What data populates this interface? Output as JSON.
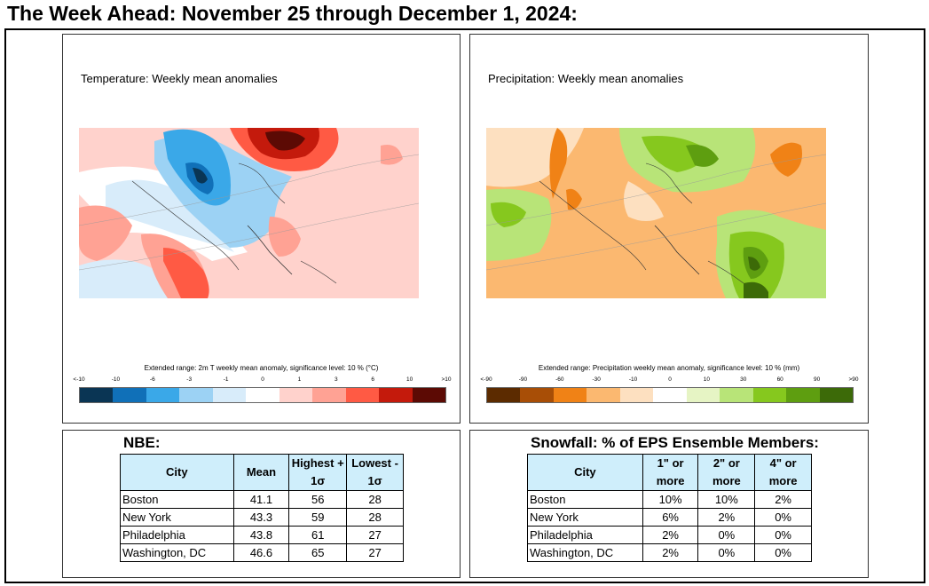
{
  "page_title": "The Week Ahead: November 25 through December 1, 2024:",
  "temperature_map": {
    "subtitle": "Temperature: Weekly mean anomalies",
    "legend_caption": "Extended range: 2m T weekly mean anomaly, significance level: 10 % (°C)",
    "tick_labels": [
      "<-10",
      "-10",
      "-6",
      "-3",
      "-1",
      "0",
      "1",
      "3",
      "6",
      "10",
      ">10"
    ],
    "colors": [
      "#0a3554",
      "#1070b8",
      "#3aa8e8",
      "#9cd2f4",
      "#d8ecfa",
      "#ffffff",
      "#ffd2cc",
      "#ffa294",
      "#ff5a44",
      "#c41a0c",
      "#5c0a04"
    ]
  },
  "precipitation_map": {
    "subtitle": "Precipitation: Weekly mean anomalies",
    "legend_caption": "Extended range: Precipitation weekly mean anomaly, significance level: 10 % (mm)",
    "tick_labels": [
      "<-90",
      "-90",
      "-60",
      "-30",
      "-10",
      "0",
      "10",
      "30",
      "60",
      "90",
      ">90"
    ],
    "colors": [
      "#5c2b00",
      "#a84e06",
      "#f08216",
      "#fbb870",
      "#fde0c0",
      "#ffffff",
      "#e6f4c4",
      "#b8e478",
      "#86c81e",
      "#5e9e10",
      "#3c6a08"
    ]
  },
  "nbe_table": {
    "title": "NBE:",
    "headers": [
      "City",
      "Mean",
      "Highest + 1σ",
      "Lowest - 1σ"
    ],
    "rows": [
      [
        "Boston",
        "41.1",
        "56",
        "28"
      ],
      [
        "New York",
        "43.3",
        "59",
        "28"
      ],
      [
        "Philadelphia",
        "43.8",
        "61",
        "27"
      ],
      [
        "Washington, DC",
        "46.6",
        "65",
        "27"
      ]
    ]
  },
  "snow_table": {
    "title": "Snowfall: % of EPS Ensemble Members:",
    "headers": [
      "City",
      "1\" or more",
      "2\" or more",
      "4\" or more"
    ],
    "rows": [
      [
        "Boston",
        "10%",
        "10%",
        "2%"
      ],
      [
        "New York",
        "6%",
        "2%",
        "0%"
      ],
      [
        "Philadelphia",
        "2%",
        "0%",
        "0%"
      ],
      [
        "Washington, DC",
        "2%",
        "0%",
        "0%"
      ]
    ]
  }
}
